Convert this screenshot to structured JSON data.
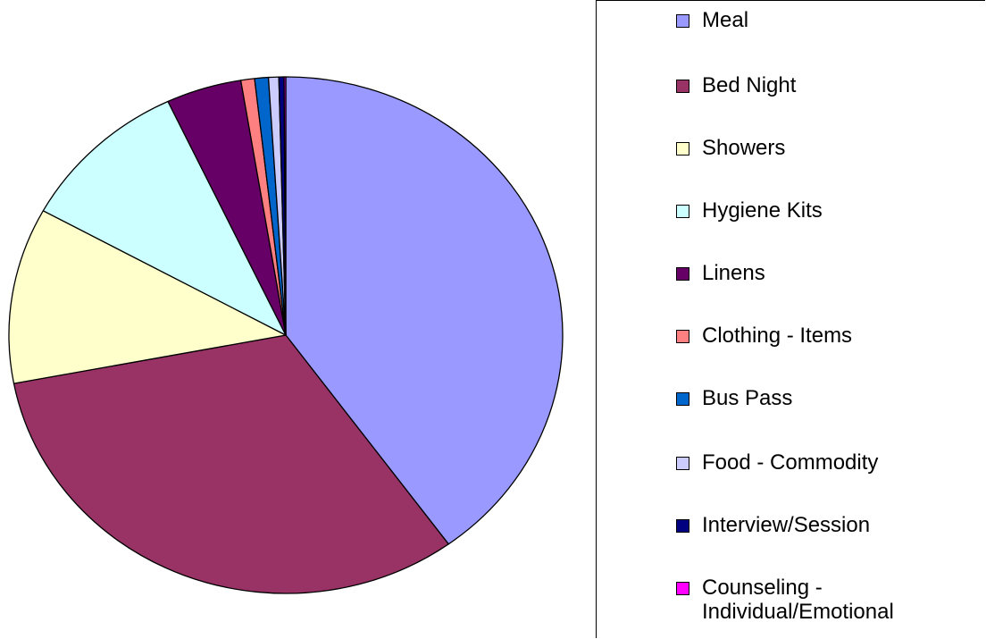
{
  "chart_data": {
    "type": "pie",
    "categories": [
      "Meal",
      "Bed Night",
      "Showers",
      "Hygiene Kits",
      "Linens",
      "Clothing - Items",
      "Bus Pass",
      "Food - Commodity",
      "Interview/Session",
      "Counseling - Individual/Emotional"
    ],
    "values": [
      40,
      32,
      11,
      10,
      4.4,
      0.8,
      0.8,
      0.6,
      0.3,
      0.1
    ],
    "colors": [
      "#9999ff",
      "#993366",
      "#ffffcc",
      "#ccffff",
      "#660066",
      "#ff8080",
      "#0066cc",
      "#ccccff",
      "#000080",
      "#ff00ff"
    ],
    "legend": "right"
  }
}
